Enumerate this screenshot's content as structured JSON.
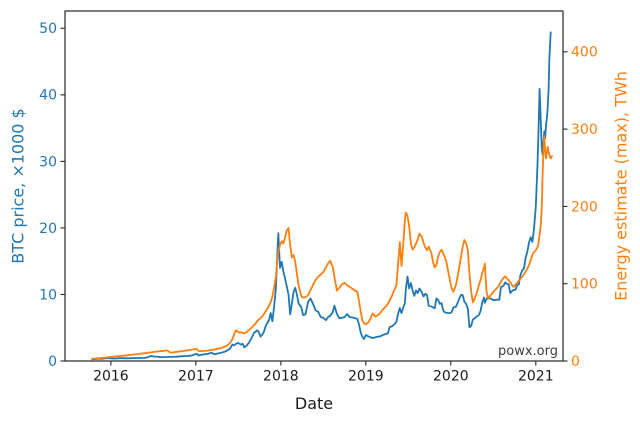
{
  "chart": {
    "watermark": "powx.org",
    "x_axis": {
      "label": "Date",
      "ticks": [
        2016,
        2017,
        2018,
        2019,
        2020,
        2021
      ],
      "range": [
        2015.46,
        2021.32
      ],
      "color": "#1a1a1a"
    },
    "left_axis": {
      "label": "BTC price, ×1000 $",
      "ticks": [
        0,
        10,
        20,
        30,
        40,
        50
      ],
      "range": [
        0,
        52.6
      ],
      "color": "#1f77b4"
    },
    "right_axis": {
      "label": "Energy estimate (max), TWh",
      "ticks": [
        0,
        100,
        200,
        300,
        400
      ],
      "range": [
        0,
        452.8
      ],
      "color": "#ff7f0e"
    },
    "spine_color": "#262626",
    "background": "#ffffff"
  },
  "chart_data": {
    "type": "line",
    "title": "",
    "xlabel": "Date",
    "legend": "none",
    "grid": false,
    "columns": [
      "date_decimal_year",
      "BTC price, ×1000 $",
      "Energy estimate (max), TWh"
    ],
    "series": [
      {
        "name": "BTC price, ×1000 $",
        "axis": "left",
        "color": "#1f77b4",
        "column": 1
      },
      {
        "name": "Energy estimate (max), TWh",
        "axis": "right",
        "color": "#ff7f0e",
        "column": 2
      }
    ],
    "points": [
      [
        2015.78,
        0.25,
        2.8
      ],
      [
        2015.82,
        0.3,
        3.2
      ],
      [
        2015.86,
        0.36,
        3.7
      ],
      [
        2015.9,
        0.33,
        4.1
      ],
      [
        2015.94,
        0.42,
        4.5
      ],
      [
        2015.98,
        0.43,
        5.0
      ],
      [
        2016.02,
        0.38,
        5.4
      ],
      [
        2016.06,
        0.38,
        5.9
      ],
      [
        2016.1,
        0.42,
        6.4
      ],
      [
        2016.15,
        0.42,
        6.9
      ],
      [
        2016.19,
        0.41,
        7.4
      ],
      [
        2016.23,
        0.42,
        7.9
      ],
      [
        2016.27,
        0.44,
        8.4
      ],
      [
        2016.31,
        0.45,
        8.9
      ],
      [
        2016.35,
        0.45,
        9.5
      ],
      [
        2016.4,
        0.47,
        10.1
      ],
      [
        2016.44,
        0.58,
        10.7
      ],
      [
        2016.46,
        0.7,
        11.0
      ],
      [
        2016.48,
        0.76,
        11.3
      ],
      [
        2016.5,
        0.66,
        11.7
      ],
      [
        2016.54,
        0.66,
        12.2
      ],
      [
        2016.58,
        0.58,
        12.7
      ],
      [
        2016.62,
        0.59,
        13.2
      ],
      [
        2016.66,
        0.61,
        13.7
      ],
      [
        2016.7,
        0.61,
        10.9
      ],
      [
        2016.74,
        0.62,
        11.3
      ],
      [
        2016.78,
        0.64,
        11.9
      ],
      [
        2016.82,
        0.71,
        12.5
      ],
      [
        2016.86,
        0.73,
        13.1
      ],
      [
        2016.9,
        0.75,
        13.7
      ],
      [
        2016.94,
        0.8,
        14.4
      ],
      [
        2016.98,
        0.96,
        15.3
      ],
      [
        2017.01,
        1.1,
        15.7
      ],
      [
        2017.03,
        0.82,
        13.1
      ],
      [
        2017.06,
        0.91,
        12.7
      ],
      [
        2017.1,
        1.0,
        13.1
      ],
      [
        2017.14,
        1.07,
        13.5
      ],
      [
        2017.17,
        1.19,
        14.0
      ],
      [
        2017.19,
        1.22,
        14.4
      ],
      [
        2017.22,
        0.99,
        14.9
      ],
      [
        2017.25,
        1.11,
        15.6
      ],
      [
        2017.29,
        1.22,
        16.6
      ],
      [
        2017.33,
        1.36,
        18.1
      ],
      [
        2017.37,
        1.58,
        20.2
      ],
      [
        2017.4,
        1.85,
        23.2
      ],
      [
        2017.43,
        2.46,
        28.2
      ],
      [
        2017.45,
        2.36,
        34.2
      ],
      [
        2017.47,
        2.56,
        39.6
      ],
      [
        2017.49,
        2.71,
        38.2
      ],
      [
        2017.51,
        2.63,
        36.7
      ],
      [
        2017.53,
        2.46,
        37.2
      ],
      [
        2017.55,
        2.59,
        36.2
      ],
      [
        2017.57,
        2.06,
        35.7
      ],
      [
        2017.6,
        2.36,
        37.7
      ],
      [
        2017.63,
        2.86,
        40.7
      ],
      [
        2017.66,
        3.56,
        43.7
      ],
      [
        2017.68,
        4.16,
        46.2
      ],
      [
        2017.7,
        4.39,
        48.2
      ],
      [
        2017.72,
        4.61,
        51.2
      ],
      [
        2017.74,
        4.36,
        53.7
      ],
      [
        2017.76,
        3.66,
        55.2
      ],
      [
        2017.78,
        3.96,
        57.7
      ],
      [
        2017.8,
        4.41,
        60.7
      ],
      [
        2017.82,
        5.21,
        64.2
      ],
      [
        2017.84,
        5.71,
        67.7
      ],
      [
        2017.86,
        6.16,
        71.7
      ],
      [
        2017.88,
        7.21,
        76.2
      ],
      [
        2017.9,
        5.96,
        83.2
      ],
      [
        2017.92,
        8.21,
        95.2
      ],
      [
        2017.94,
        10.8,
        108.0
      ],
      [
        2017.95,
        13.5,
        120.0
      ],
      [
        2017.96,
        16.6,
        133.0
      ],
      [
        2017.97,
        19.2,
        141.0
      ],
      [
        2017.99,
        14.0,
        150.0
      ],
      [
        2018.01,
        14.9,
        155.0
      ],
      [
        2018.03,
        13.4,
        152.0
      ],
      [
        2018.05,
        12.4,
        160.0
      ],
      [
        2018.07,
        11.2,
        169.0
      ],
      [
        2018.09,
        10.0,
        172.0
      ],
      [
        2018.11,
        7.0,
        150.0
      ],
      [
        2018.13,
        8.7,
        134.0
      ],
      [
        2018.15,
        10.4,
        137.0
      ],
      [
        2018.17,
        11.0,
        128.0
      ],
      [
        2018.19,
        9.9,
        112.0
      ],
      [
        2018.21,
        8.6,
        97.0
      ],
      [
        2018.24,
        8.1,
        84.0
      ],
      [
        2018.26,
        6.9,
        82.0
      ],
      [
        2018.29,
        7.0,
        82.5
      ],
      [
        2018.32,
        8.9,
        85.0
      ],
      [
        2018.35,
        9.4,
        92.0
      ],
      [
        2018.38,
        8.5,
        99.0
      ],
      [
        2018.41,
        7.6,
        105.0
      ],
      [
        2018.44,
        7.4,
        109.0
      ],
      [
        2018.47,
        6.6,
        112.0
      ],
      [
        2018.5,
        6.5,
        115.0
      ],
      [
        2018.53,
        6.15,
        121.0
      ],
      [
        2018.56,
        6.65,
        127.0
      ],
      [
        2018.58,
        6.8,
        129.5
      ],
      [
        2018.61,
        7.3,
        122.0
      ],
      [
        2018.63,
        8.3,
        109.0
      ],
      [
        2018.66,
        7.1,
        91.0
      ],
      [
        2018.69,
        6.4,
        95.0
      ],
      [
        2018.72,
        6.5,
        99.5
      ],
      [
        2018.75,
        6.6,
        101.0
      ],
      [
        2018.78,
        7.05,
        98.0
      ],
      [
        2018.81,
        6.6,
        96.0
      ],
      [
        2018.84,
        6.55,
        93.5
      ],
      [
        2018.87,
        6.45,
        91.5
      ],
      [
        2018.9,
        6.35,
        89.5
      ],
      [
        2018.92,
        5.5,
        78.0
      ],
      [
        2018.94,
        4.3,
        64.0
      ],
      [
        2018.96,
        3.6,
        52.0
      ],
      [
        2018.98,
        3.3,
        48.5
      ],
      [
        2019.0,
        3.9,
        47.5
      ],
      [
        2019.03,
        3.7,
        50.0
      ],
      [
        2019.06,
        3.55,
        56.0
      ],
      [
        2019.08,
        3.45,
        61.5
      ],
      [
        2019.11,
        3.55,
        57.5
      ],
      [
        2019.14,
        3.65,
        59.0
      ],
      [
        2019.17,
        3.7,
        62.5
      ],
      [
        2019.2,
        3.9,
        66.5
      ],
      [
        2019.23,
        4.05,
        70.0
      ],
      [
        2019.26,
        4.15,
        74.0
      ],
      [
        2019.28,
        5.1,
        78.0
      ],
      [
        2019.31,
        5.25,
        85.0
      ],
      [
        2019.34,
        5.55,
        93.0
      ],
      [
        2019.36,
        5.9,
        98.0
      ],
      [
        2019.38,
        7.1,
        125.0
      ],
      [
        2019.4,
        7.95,
        154.0
      ],
      [
        2019.42,
        7.2,
        123.0
      ],
      [
        2019.44,
        8.0,
        150.0
      ],
      [
        2019.46,
        8.7,
        183.0
      ],
      [
        2019.47,
        10.7,
        192.0
      ],
      [
        2019.49,
        12.7,
        188.0
      ],
      [
        2019.51,
        10.9,
        174.0
      ],
      [
        2019.53,
        11.7,
        152.0
      ],
      [
        2019.55,
        10.6,
        144.0
      ],
      [
        2019.57,
        9.8,
        147.0
      ],
      [
        2019.59,
        10.6,
        152.0
      ],
      [
        2019.61,
        10.2,
        157.0
      ],
      [
        2019.63,
        10.9,
        165.0
      ],
      [
        2019.66,
        10.3,
        160.5
      ],
      [
        2019.68,
        9.7,
        152.5
      ],
      [
        2019.7,
        10.1,
        147.0
      ],
      [
        2019.72,
        9.9,
        143.5
      ],
      [
        2019.74,
        8.3,
        148.0
      ],
      [
        2019.77,
        8.2,
        140.0
      ],
      [
        2019.79,
        8.05,
        128.5
      ],
      [
        2019.81,
        7.9,
        121.0
      ],
      [
        2019.83,
        9.4,
        124.0
      ],
      [
        2019.85,
        9.2,
        135.0
      ],
      [
        2019.87,
        8.6,
        141.0
      ],
      [
        2019.89,
        8.7,
        144.0
      ],
      [
        2019.91,
        7.6,
        139.5
      ],
      [
        2019.93,
        7.3,
        134.0
      ],
      [
        2019.95,
        7.25,
        127.0
      ],
      [
        2019.97,
        7.2,
        115.0
      ],
      [
        2019.99,
        7.2,
        104.0
      ],
      [
        2020.01,
        7.35,
        94.0
      ],
      [
        2020.03,
        8.05,
        89.5
      ],
      [
        2020.06,
        8.15,
        98.0
      ],
      [
        2020.08,
        8.75,
        109.0
      ],
      [
        2020.1,
        9.35,
        122.0
      ],
      [
        2020.12,
        9.95,
        135.0
      ],
      [
        2020.14,
        9.9,
        148.0
      ],
      [
        2020.16,
        8.9,
        156.5
      ],
      [
        2020.18,
        8.6,
        152.5
      ],
      [
        2020.2,
        7.9,
        143.5
      ],
      [
        2020.22,
        5.05,
        112.0
      ],
      [
        2020.24,
        5.3,
        90.0
      ],
      [
        2020.26,
        6.25,
        76.0
      ],
      [
        2020.28,
        6.4,
        80.0
      ],
      [
        2020.31,
        6.75,
        90.0
      ],
      [
        2020.33,
        6.9,
        98.0
      ],
      [
        2020.35,
        7.55,
        105.0
      ],
      [
        2020.37,
        8.85,
        114.0
      ],
      [
        2020.39,
        9.55,
        121.0
      ],
      [
        2020.4,
        8.75,
        126.0
      ],
      [
        2020.42,
        9.3,
        90.0
      ],
      [
        2020.44,
        9.7,
        80.0
      ],
      [
        2020.46,
        9.45,
        84.0
      ],
      [
        2020.49,
        9.2,
        88.0
      ],
      [
        2020.52,
        9.15,
        92.0
      ],
      [
        2020.55,
        9.25,
        95.0
      ],
      [
        2020.57,
        9.2,
        98.5
      ],
      [
        2020.59,
        11.1,
        103.0
      ],
      [
        2020.62,
        11.3,
        107.5
      ],
      [
        2020.64,
        11.8,
        109.5
      ],
      [
        2020.66,
        11.6,
        107.0
      ],
      [
        2020.68,
        11.5,
        104.5
      ],
      [
        2020.7,
        10.2,
        101.5
      ],
      [
        2020.72,
        10.5,
        98.0
      ],
      [
        2020.74,
        10.7,
        96.0
      ],
      [
        2020.76,
        10.7,
        98.5
      ],
      [
        2020.78,
        11.4,
        101.0
      ],
      [
        2020.8,
        11.5,
        104.0
      ],
      [
        2020.82,
        12.95,
        106.5
      ],
      [
        2020.84,
        13.6,
        109.0
      ],
      [
        2020.86,
        13.9,
        112.0
      ],
      [
        2020.88,
        15.5,
        115.5
      ],
      [
        2020.9,
        16.4,
        119.5
      ],
      [
        2020.92,
        17.8,
        124.0
      ],
      [
        2020.94,
        18.6,
        130.5
      ],
      [
        2020.96,
        17.9,
        137.5
      ],
      [
        2020.98,
        20.0,
        141.0
      ],
      [
        2021.0,
        23.2,
        143.5
      ],
      [
        2021.02,
        29.5,
        147.0
      ],
      [
        2021.03,
        34.0,
        152.0
      ],
      [
        2021.045,
        40.9,
        163.0
      ],
      [
        2021.06,
        35.5,
        178.0
      ],
      [
        2021.07,
        32.0,
        200.0
      ],
      [
        2021.08,
        31.0,
        240.0
      ],
      [
        2021.09,
        33.0,
        275.0
      ],
      [
        2021.1,
        34.5,
        291.0
      ],
      [
        2021.11,
        33.5,
        272.0
      ],
      [
        2021.12,
        35.5,
        262.0
      ],
      [
        2021.13,
        36.5,
        270.0
      ],
      [
        2021.14,
        38.0,
        277.0
      ],
      [
        2021.15,
        41.0,
        271.0
      ],
      [
        2021.16,
        45.5,
        266.0
      ],
      [
        2021.175,
        49.4,
        262.0
      ],
      [
        2021.19,
        null,
        265.0
      ]
    ]
  }
}
